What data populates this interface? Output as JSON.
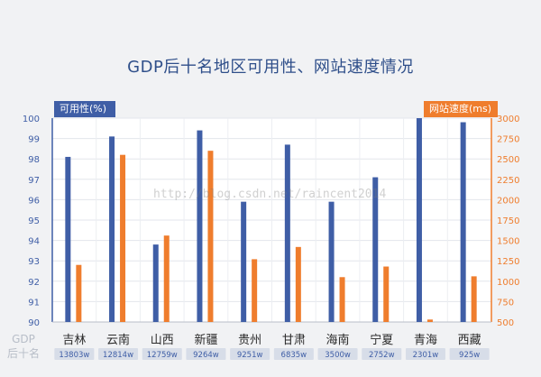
{
  "title": "GDP后十名地区可用性、网站速度情况",
  "left_axis_tag": "可用性(%)",
  "right_axis_tag": "网站速度(ms)",
  "row_label_line1": "GDP",
  "row_label_line2": "后十名",
  "watermark": "http://blog.csdn.net/raincent2014",
  "colors": {
    "availability": "#3f5ea6",
    "speed": "#ef7d2d",
    "axis_text": "#3f5ea6",
    "right_axis_text": "#ef7d2d"
  },
  "chart_data": {
    "type": "bar",
    "categories": [
      "吉林",
      "云南",
      "山西",
      "新疆",
      "贵州",
      "甘肃",
      "海南",
      "宁夏",
      "青海",
      "西藏"
    ],
    "gdp_labels": [
      "13803w",
      "12814w",
      "12759w",
      "9264w",
      "9251w",
      "6835w",
      "3500w",
      "2752w",
      "2301w",
      "925w"
    ],
    "series": [
      {
        "axis": "left",
        "values": [
          98.1,
          99.1,
          93.8,
          99.4,
          95.9,
          98.7,
          95.9,
          97.1,
          100.0,
          99.8
        ]
      },
      {
        "axis": "right",
        "values": [
          1200,
          2550,
          1560,
          2600,
          1270,
          1420,
          1050,
          1180,
          530,
          1060
        ]
      }
    ],
    "y_left": {
      "range": [
        90,
        100
      ],
      "ticks": [
        90,
        91,
        92,
        93,
        94,
        95,
        96,
        97,
        98,
        99,
        100
      ]
    },
    "y_right": {
      "range": [
        500,
        3000
      ],
      "ticks": [
        500,
        750,
        1000,
        1250,
        1500,
        1750,
        2000,
        2250,
        2500,
        2750,
        3000
      ]
    },
    "grid": true
  }
}
